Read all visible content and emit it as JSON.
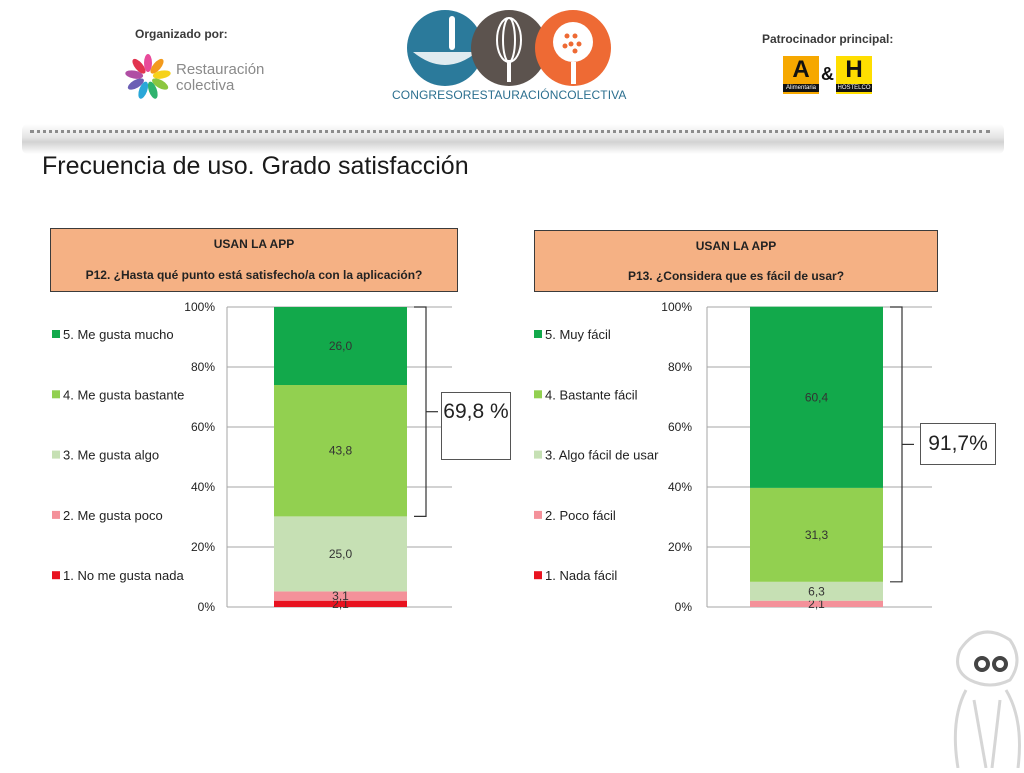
{
  "header": {
    "organized_label": "Organizado por:",
    "left_logo_line1": "Restauración",
    "left_logo_line2": "colectiva",
    "center_logo_text": "CONGRESORESTAURACIÓNCOLECTIVA",
    "sponsor_label": "Patrocinador principal:",
    "sponsor_a": "A",
    "sponsor_amp": "&",
    "sponsor_h": "H",
    "sponsor_a_caption": "Alimentaria",
    "sponsor_h_caption": "HOSTELCO"
  },
  "page_title": "Frecuencia de uso. Grado satisfacción",
  "colors": {
    "cat5": "#12a94b",
    "cat4": "#92d050",
    "cat3": "#c6e0b4",
    "cat2": "#f4919a",
    "cat1": "#e8121f",
    "question_box": "#f5b184"
  },
  "chart_data": [
    {
      "type": "bar",
      "stacked": true,
      "header_line1": "USAN LA APP",
      "header_line2": "P12. ¿Hasta qué punto está satisfecho/a con la aplicación?",
      "categories": [
        "P12"
      ],
      "series": [
        {
          "name": "1. No me gusta nada",
          "values": [
            2.1
          ],
          "label": "2,1"
        },
        {
          "name": "2. Me gusta poco",
          "values": [
            3.1
          ],
          "label": "3,1"
        },
        {
          "name": "3. Me gusta algo",
          "values": [
            25.0
          ],
          "label": "25,0"
        },
        {
          "name": "4. Me gusta bastante",
          "values": [
            43.8
          ],
          "label": "43,8"
        },
        {
          "name": "5. Me gusta mucho",
          "values": [
            26.0
          ],
          "label": "26,0"
        }
      ],
      "yticks": [
        "0%",
        "20%",
        "40%",
        "60%",
        "80%",
        "100%"
      ],
      "ylim": [
        0,
        100
      ],
      "grid": true,
      "legend": "left",
      "summary_label": "69,8 %",
      "summary_from": 30.2,
      "summary_to": 100
    },
    {
      "type": "bar",
      "stacked": true,
      "header_line1": "USAN LA APP",
      "header_line2": "P13. ¿Considera que es fácil de usar?",
      "categories": [
        "P13"
      ],
      "series": [
        {
          "name": "1. Nada fácil",
          "values": [
            0
          ],
          "label": ""
        },
        {
          "name": "2. Poco fácil",
          "values": [
            2.1
          ],
          "label": "2,1"
        },
        {
          "name": "3. Algo fácil de usar",
          "values": [
            6.3
          ],
          "label": "6,3"
        },
        {
          "name": "4. Bastante fácil",
          "values": [
            31.3
          ],
          "label": "31,3"
        },
        {
          "name": "5. Muy fácil",
          "values": [
            60.4
          ],
          "label": "60,4"
        }
      ],
      "yticks": [
        "0%",
        "20%",
        "40%",
        "60%",
        "80%",
        "100%"
      ],
      "ylim": [
        0,
        100
      ],
      "grid": true,
      "legend": "left",
      "summary_label": "91,7%",
      "summary_from": 8.4,
      "summary_to": 100
    }
  ]
}
